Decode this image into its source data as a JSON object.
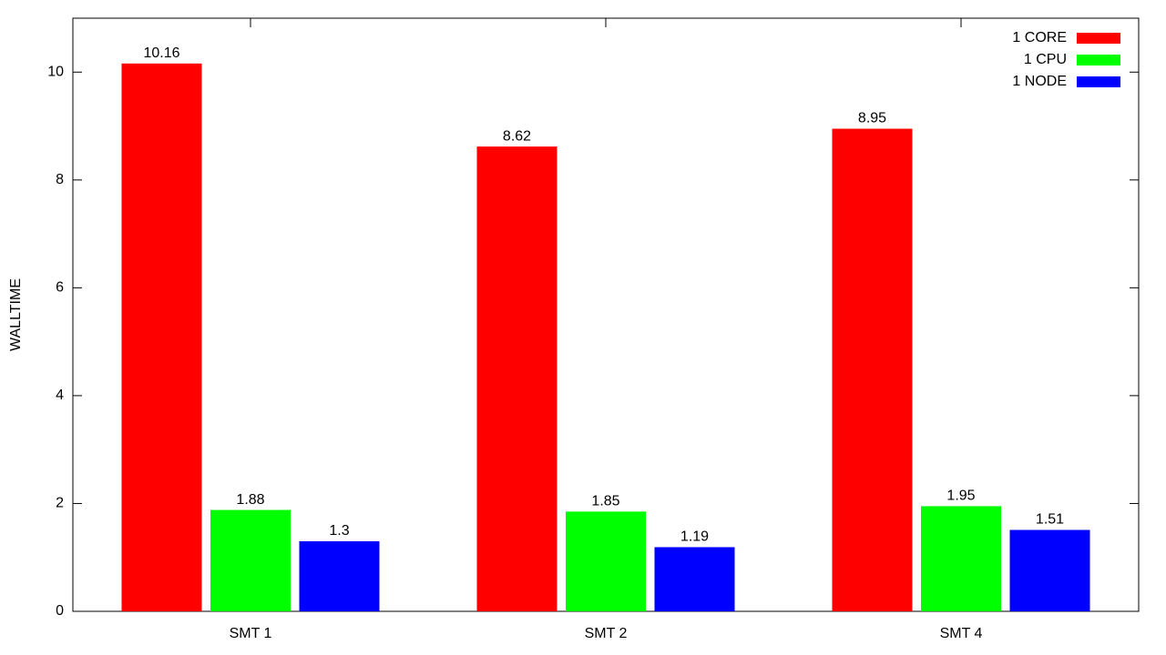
{
  "chart_data": {
    "type": "bar",
    "y_label": "WALLTIME",
    "categories": [
      "SMT 1",
      "SMT 2",
      "SMT 4"
    ],
    "series": [
      {
        "name": "1 CORE",
        "color": "#ff0000",
        "values": [
          10.16,
          8.62,
          8.95
        ]
      },
      {
        "name": "1 CPU",
        "color": "#00ff00",
        "values": [
          1.88,
          1.85,
          1.95
        ]
      },
      {
        "name": "1 NODE",
        "color": "#0000ff",
        "values": [
          1.3,
          1.19,
          1.51
        ]
      }
    ],
    "ylim": [
      0,
      11
    ],
    "yticks": [
      0,
      2,
      4,
      6,
      8,
      10
    ],
    "grid": false,
    "legend": "top-right"
  }
}
